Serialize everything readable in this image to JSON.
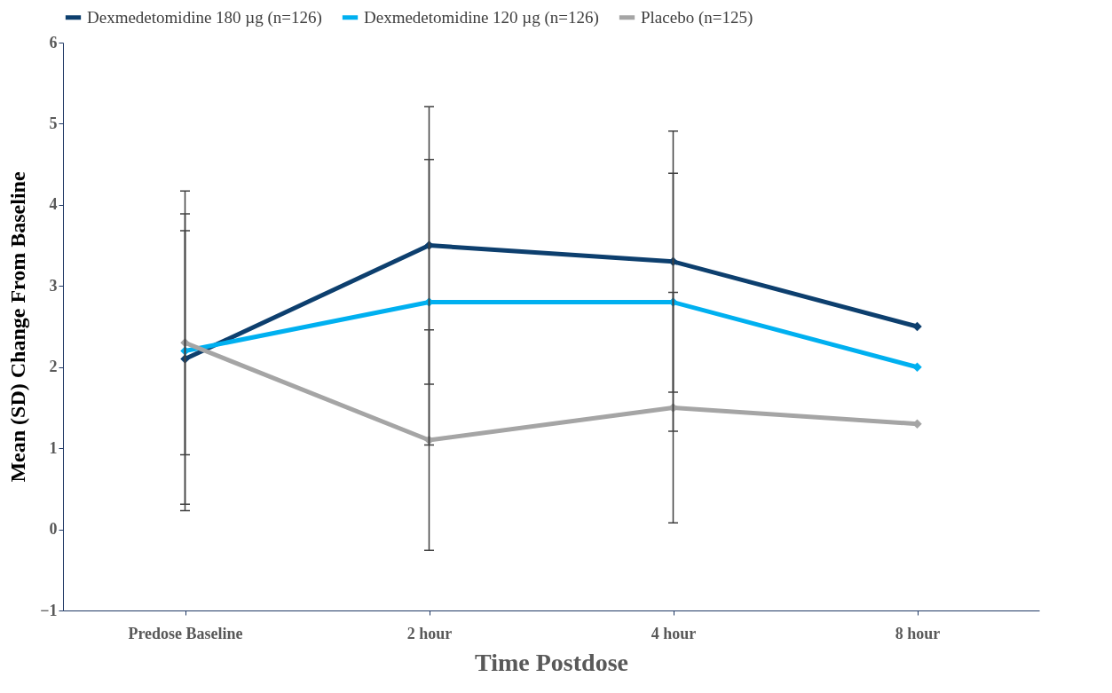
{
  "chart_data": {
    "type": "line",
    "xlabel": "Time Postdose",
    "ylabel": "Mean (SD) Change From Baseline",
    "categories": [
      "Predose Baseline",
      "2 hour",
      "4 hour",
      "8 hour"
    ],
    "series": [
      {
        "name": "Dexmedetomidine 180 µg (n=126)",
        "color": "#0d3f6e",
        "values": [
          2.1,
          3.5,
          3.3,
          2.5
        ],
        "errors": [
          1.79,
          1.71,
          1.61,
          null
        ]
      },
      {
        "name": "Dexmedetomidine 120 µg (n=126)",
        "color": "#00b0f0",
        "values": [
          2.2,
          2.8,
          2.8,
          2.0
        ],
        "errors": [
          1.97,
          1.76,
          1.59,
          null
        ]
      },
      {
        "name": "Placebo (n=125)",
        "color": "#a5a5a5",
        "values": [
          2.3,
          1.1,
          1.5,
          1.3
        ],
        "errors": [
          1.38,
          1.36,
          1.42,
          null
        ]
      }
    ],
    "ylim": [
      -1,
      6
    ],
    "yticks": [
      -1,
      0,
      1,
      2,
      3,
      4,
      5,
      6
    ],
    "marker": "diamond",
    "line_style": "solid",
    "legend": "top",
    "grid": false
  }
}
